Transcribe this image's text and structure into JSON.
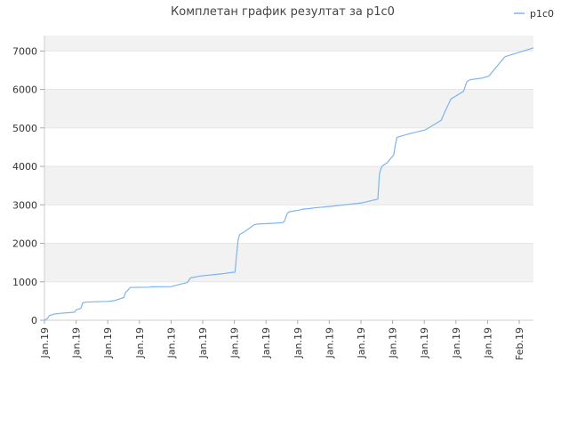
{
  "chart_data": {
    "type": "line",
    "title": "Комплетан график резултат за p1c0",
    "xlabel": "",
    "ylabel": "",
    "ylim": [
      0,
      7400
    ],
    "yticks": [
      0,
      1000,
      2000,
      3000,
      4000,
      5000,
      6000,
      7000
    ],
    "ytick_labels": [
      "0",
      "1000",
      "2000",
      "3000",
      "4000",
      "5000",
      "6000",
      "7000"
    ],
    "xlim": [
      0,
      15.4
    ],
    "xtick_labels": [
      "Jan.19",
      "Jan.19",
      "Jan.19",
      "Jan.19",
      "Jan.19",
      "Jan.19",
      "Jan.19",
      "Jan.19",
      "Jan.19",
      "Jan.19",
      "Jan.19",
      "Jan.19",
      "Jan.19",
      "Jan.19",
      "Jan.19",
      "Feb.19"
    ],
    "grid": true,
    "background_bands": "alternating",
    "legend_position": "top-right",
    "line_color": "#7cb5ec",
    "band_color": "#f2f2f2",
    "series": [
      {
        "name": "p1c0",
        "x": [
          0,
          0.1,
          0.15,
          0.3,
          0.5,
          0.8,
          0.95,
          1.0,
          1.15,
          1.2,
          1.3,
          1.6,
          2.0,
          2.2,
          2.5,
          2.55,
          2.65,
          2.7,
          3.3,
          3.35,
          4.0,
          4.1,
          4.5,
          4.6,
          4.8,
          4.9,
          5.5,
          6.0,
          6.05,
          6.1,
          6.15,
          6.3,
          6.35,
          6.6,
          6.7,
          7.2,
          7.5,
          7.55,
          7.65,
          7.7,
          8.0,
          8.05,
          8.15,
          8.3,
          8.5,
          9.0,
          10.0,
          10.5,
          10.55,
          10.6,
          10.65,
          10.8,
          11.0,
          11.05,
          11.1,
          11.2,
          11.5,
          12.0,
          12.5,
          12.6,
          12.8,
          13.2,
          13.3,
          13.4,
          13.8,
          14.0,
          14.2,
          14.5,
          15.4
        ],
        "values": [
          0,
          50,
          120,
          160,
          180,
          200,
          210,
          270,
          310,
          450,
          470,
          480,
          490,
          510,
          590,
          720,
          800,
          850,
          860,
          870,
          875,
          900,
          980,
          1100,
          1130,
          1150,
          1200,
          1250,
          1700,
          2100,
          2230,
          2300,
          2330,
          2480,
          2500,
          2520,
          2540,
          2560,
          2780,
          2820,
          2860,
          2870,
          2890,
          2900,
          2920,
          2960,
          3050,
          3150,
          3800,
          3950,
          4020,
          4100,
          4300,
          4550,
          4750,
          4780,
          4850,
          4950,
          5200,
          5400,
          5750,
          5950,
          6200,
          6250,
          6300,
          6350,
          6550,
          6850,
          7080
        ]
      }
    ]
  }
}
